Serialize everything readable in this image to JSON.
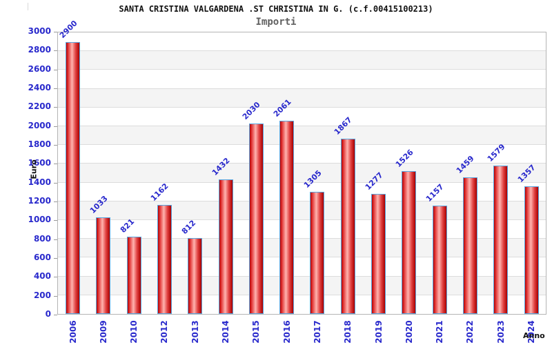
{
  "chart_data": {
    "type": "bar",
    "title": "SANTA CRISTINA VALGARDENA .ST CHRISTINA IN G. (c.f.00415100213)",
    "subtitle": "Importi",
    "xlabel": "Anno",
    "ylabel": "Euro",
    "categories": [
      "2006",
      "2009",
      "2010",
      "2012",
      "2013",
      "2014",
      "2015",
      "2016",
      "2017",
      "2018",
      "2019",
      "2020",
      "2021",
      "2022",
      "2023",
      "2024"
    ],
    "values": [
      2900,
      1033,
      821,
      1162,
      812,
      1432,
      2030,
      2061,
      1305,
      1867,
      1277,
      1526,
      1157,
      1459,
      1579,
      1357
    ],
    "ylim": [
      0,
      3000
    ],
    "ytick_step": 200,
    "grid": true,
    "legend": "none",
    "band_fill": "alternating horizontal white/gray bands",
    "colors": {
      "bar_fill_dark": "#b80000",
      "bar_fill_light": "#ffb3af",
      "bar_border": "#58a6e0",
      "label_blue": "#2929cc",
      "grid_line": "#dcdcdc",
      "band_gray": "#f4f4f4",
      "band_white": "#ffffff",
      "plot_border": "#b4b4b4",
      "title_color": "#111111",
      "subtitle_color": "#606060",
      "axis_title_color": "#111111"
    }
  }
}
